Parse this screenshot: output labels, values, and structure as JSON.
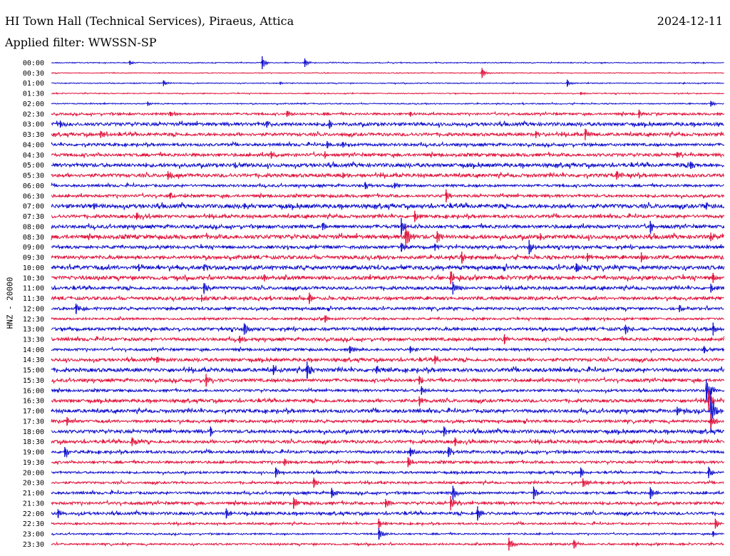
{
  "header": {
    "station": "HI Town Hall (Technical Services), Piraeus, Attica",
    "date": "2024-12-11",
    "filter_label": "Applied filter: WWSSN-SP",
    "channel_label": "HNZ - 20000"
  },
  "chart_data": {
    "type": "line",
    "title": "HI Town Hall (Technical Services), Piraeus, Attica",
    "subtitle": "Applied filter: WWSSN-SP",
    "ylabel": "HNZ - 20000",
    "x_range_minutes": [
      0,
      30
    ],
    "series_colors": [
      "#1010cc",
      "#e0143c"
    ],
    "rows": [
      {
        "label": "00:00",
        "noise": 0.6,
        "events": [
          {
            "t": 9.4,
            "amp": 9
          },
          {
            "t": 11.3,
            "amp": 6
          },
          {
            "t": 3.5,
            "amp": 3
          }
        ]
      },
      {
        "label": "00:30",
        "noise": 0.5,
        "events": [
          {
            "t": 19.2,
            "amp": 7
          }
        ]
      },
      {
        "label": "01:00",
        "noise": 0.6,
        "events": [
          {
            "t": 5.0,
            "amp": 4
          },
          {
            "t": 23.0,
            "amp": 5
          },
          {
            "t": 10.2,
            "amp": 2
          }
        ]
      },
      {
        "label": "01:30",
        "noise": 0.6,
        "events": [
          {
            "t": 23.6,
            "amp": 2
          }
        ]
      },
      {
        "label": "02:00",
        "noise": 0.7,
        "events": [
          {
            "t": 4.3,
            "amp": 3
          },
          {
            "t": 29.4,
            "amp": 4
          }
        ]
      },
      {
        "label": "02:30",
        "noise": 1.4,
        "events": [
          {
            "t": 10.5,
            "amp": 4
          },
          {
            "t": 16.0,
            "amp": 3
          },
          {
            "t": 26.2,
            "amp": 6
          },
          {
            "t": 5.3,
            "amp": 3
          }
        ]
      },
      {
        "label": "03:00",
        "noise": 2.2,
        "events": [
          {
            "t": 0.4,
            "amp": 5
          },
          {
            "t": 12.4,
            "amp": 6
          },
          {
            "t": 9.6,
            "amp": 4
          }
        ]
      },
      {
        "label": "03:30",
        "noise": 2.0,
        "events": [
          {
            "t": 23.8,
            "amp": 8
          },
          {
            "t": 2.2,
            "amp": 5
          },
          {
            "t": 21.6,
            "amp": 5
          }
        ]
      },
      {
        "label": "04:00",
        "noise": 1.8,
        "events": [
          {
            "t": 12.3,
            "amp": 5
          },
          {
            "t": 13.0,
            "amp": 4
          }
        ]
      },
      {
        "label": "04:30",
        "noise": 2.0,
        "events": [
          {
            "t": 9.8,
            "amp": 5
          },
          {
            "t": 12.2,
            "amp": 5
          },
          {
            "t": 27.9,
            "amp": 4
          }
        ]
      },
      {
        "label": "05:00",
        "noise": 2.4,
        "events": [
          {
            "t": 28.5,
            "amp": 5
          },
          {
            "t": 8.2,
            "amp": 4
          }
        ]
      },
      {
        "label": "05:30",
        "noise": 2.2,
        "events": [
          {
            "t": 5.2,
            "amp": 6
          },
          {
            "t": 25.2,
            "amp": 6
          },
          {
            "t": 13.0,
            "amp": 4
          }
        ]
      },
      {
        "label": "06:00",
        "noise": 1.6,
        "events": [
          {
            "t": 14.0,
            "amp": 5
          },
          {
            "t": 15.3,
            "amp": 4
          }
        ]
      },
      {
        "label": "06:30",
        "noise": 1.8,
        "events": [
          {
            "t": 17.6,
            "amp": 9
          },
          {
            "t": 5.3,
            "amp": 4
          }
        ]
      },
      {
        "label": "07:00",
        "noise": 2.6,
        "events": [
          {
            "t": 1.9,
            "amp": 4
          },
          {
            "t": 29.2,
            "amp": 5
          },
          {
            "t": 8.6,
            "amp": 4
          }
        ]
      },
      {
        "label": "07:30",
        "noise": 2.0,
        "events": [
          {
            "t": 3.8,
            "amp": 5
          },
          {
            "t": 16.2,
            "amp": 8
          }
        ]
      },
      {
        "label": "08:00",
        "noise": 2.2,
        "events": [
          {
            "t": 15.6,
            "amp": 12
          },
          {
            "t": 26.7,
            "amp": 8
          },
          {
            "t": 12.1,
            "amp": 5
          }
        ]
      },
      {
        "label": "08:30",
        "noise": 2.6,
        "events": [
          {
            "t": 15.8,
            "amp": 16
          },
          {
            "t": 17.2,
            "amp": 8
          },
          {
            "t": 29.4,
            "amp": 6
          },
          {
            "t": 21.8,
            "amp": 5
          }
        ]
      },
      {
        "label": "09:00",
        "noise": 2.0,
        "events": [
          {
            "t": 21.3,
            "amp": 10
          },
          {
            "t": 15.6,
            "amp": 6
          },
          {
            "t": 17.1,
            "amp": 5
          }
        ]
      },
      {
        "label": "09:30",
        "noise": 2.2,
        "events": [
          {
            "t": 18.3,
            "amp": 8
          },
          {
            "t": 26.3,
            "amp": 7
          },
          {
            "t": 23.9,
            "amp": 6
          }
        ]
      },
      {
        "label": "10:00",
        "noise": 2.6,
        "events": [
          {
            "t": 3.9,
            "amp": 5
          },
          {
            "t": 23.4,
            "amp": 6
          },
          {
            "t": 6.8,
            "amp": 4
          }
        ]
      },
      {
        "label": "10:30",
        "noise": 2.4,
        "events": [
          {
            "t": 17.8,
            "amp": 9
          },
          {
            "t": 29.5,
            "amp": 7
          },
          {
            "t": 9.5,
            "amp": 5
          }
        ]
      },
      {
        "label": "11:00",
        "noise": 2.0,
        "events": [
          {
            "t": 17.9,
            "amp": 9
          },
          {
            "t": 6.8,
            "amp": 7
          },
          {
            "t": 29.4,
            "amp": 6
          }
        ]
      },
      {
        "label": "11:30",
        "noise": 2.0,
        "events": [
          {
            "t": 11.5,
            "amp": 8
          },
          {
            "t": 6.7,
            "amp": 5
          }
        ]
      },
      {
        "label": "12:00",
        "noise": 1.8,
        "events": [
          {
            "t": 1.1,
            "amp": 7
          },
          {
            "t": 28.0,
            "amp": 5
          }
        ]
      },
      {
        "label": "12:30",
        "noise": 1.4,
        "events": [
          {
            "t": 12.2,
            "amp": 5
          }
        ]
      },
      {
        "label": "13:00",
        "noise": 2.0,
        "events": [
          {
            "t": 8.6,
            "amp": 8
          },
          {
            "t": 29.5,
            "amp": 9
          },
          {
            "t": 25.6,
            "amp": 6
          }
        ]
      },
      {
        "label": "13:30",
        "noise": 2.0,
        "events": [
          {
            "t": 20.2,
            "amp": 7
          },
          {
            "t": 8.4,
            "amp": 5
          }
        ]
      },
      {
        "label": "14:00",
        "noise": 1.6,
        "events": [
          {
            "t": 13.3,
            "amp": 5
          },
          {
            "t": 16.0,
            "amp": 5
          },
          {
            "t": 29.1,
            "amp": 5
          }
        ]
      },
      {
        "label": "14:30",
        "noise": 2.0,
        "events": [
          {
            "t": 17.1,
            "amp": 6
          },
          {
            "t": 4.7,
            "amp": 4
          }
        ]
      },
      {
        "label": "15:00",
        "noise": 2.4,
        "events": [
          {
            "t": 11.4,
            "amp": 12
          },
          {
            "t": 9.9,
            "amp": 7
          },
          {
            "t": 14.5,
            "amp": 5
          }
        ]
      },
      {
        "label": "15:30",
        "noise": 2.0,
        "events": [
          {
            "t": 6.9,
            "amp": 9
          },
          {
            "t": 16.4,
            "amp": 6
          }
        ]
      },
      {
        "label": "16:00",
        "noise": 1.6,
        "events": [
          {
            "t": 16.5,
            "amp": 6
          },
          {
            "t": 29.2,
            "amp": 16
          }
        ]
      },
      {
        "label": "16:30",
        "noise": 2.0,
        "events": [
          {
            "t": 16.4,
            "amp": 6
          },
          {
            "t": 29.3,
            "amp": 14
          }
        ]
      },
      {
        "label": "17:00",
        "noise": 2.2,
        "events": [
          {
            "t": 29.4,
            "amp": 28
          },
          {
            "t": 27.9,
            "amp": 6
          }
        ]
      },
      {
        "label": "17:30",
        "noise": 1.8,
        "events": [
          {
            "t": 0.7,
            "amp": 6
          },
          {
            "t": 29.4,
            "amp": 10
          }
        ]
      },
      {
        "label": "18:00",
        "noise": 2.2,
        "events": [
          {
            "t": 7.1,
            "amp": 7
          },
          {
            "t": 17.5,
            "amp": 7
          }
        ]
      },
      {
        "label": "18:30",
        "noise": 2.0,
        "events": [
          {
            "t": 3.6,
            "amp": 6
          },
          {
            "t": 18.0,
            "amp": 6
          }
        ]
      },
      {
        "label": "19:00",
        "noise": 1.8,
        "events": [
          {
            "t": 0.6,
            "amp": 7
          },
          {
            "t": 16.0,
            "amp": 6
          },
          {
            "t": 17.7,
            "amp": 7
          }
        ]
      },
      {
        "label": "19:30",
        "noise": 1.6,
        "events": [
          {
            "t": 15.9,
            "amp": 7
          },
          {
            "t": 10.4,
            "amp": 5
          }
        ]
      },
      {
        "label": "20:00",
        "noise": 1.4,
        "events": [
          {
            "t": 10.0,
            "amp": 7
          },
          {
            "t": 23.6,
            "amp": 7
          },
          {
            "t": 29.3,
            "amp": 8
          }
        ]
      },
      {
        "label": "20:30",
        "noise": 1.4,
        "events": [
          {
            "t": 11.7,
            "amp": 7
          },
          {
            "t": 23.7,
            "amp": 6
          }
        ]
      },
      {
        "label": "21:00",
        "noise": 1.6,
        "events": [
          {
            "t": 17.9,
            "amp": 10
          },
          {
            "t": 21.5,
            "amp": 9
          },
          {
            "t": 26.7,
            "amp": 8
          },
          {
            "t": 12.5,
            "amp": 7
          }
        ]
      },
      {
        "label": "21:30",
        "noise": 1.8,
        "events": [
          {
            "t": 10.8,
            "amp": 8
          },
          {
            "t": 17.8,
            "amp": 10
          },
          {
            "t": 14.9,
            "amp": 6
          }
        ]
      },
      {
        "label": "22:00",
        "noise": 1.8,
        "events": [
          {
            "t": 0.3,
            "amp": 6
          },
          {
            "t": 7.8,
            "amp": 7
          },
          {
            "t": 19.0,
            "amp": 10
          }
        ]
      },
      {
        "label": "22:30",
        "noise": 1.2,
        "events": [
          {
            "t": 14.6,
            "amp": 7
          },
          {
            "t": 29.6,
            "amp": 7
          }
        ]
      },
      {
        "label": "23:00",
        "noise": 1.0,
        "events": [
          {
            "t": 14.6,
            "amp": 8
          },
          {
            "t": 29.5,
            "amp": 4
          }
        ]
      },
      {
        "label": "23:30",
        "noise": 1.2,
        "events": [
          {
            "t": 20.4,
            "amp": 9
          },
          {
            "t": 23.3,
            "amp": 6
          }
        ]
      }
    ]
  }
}
